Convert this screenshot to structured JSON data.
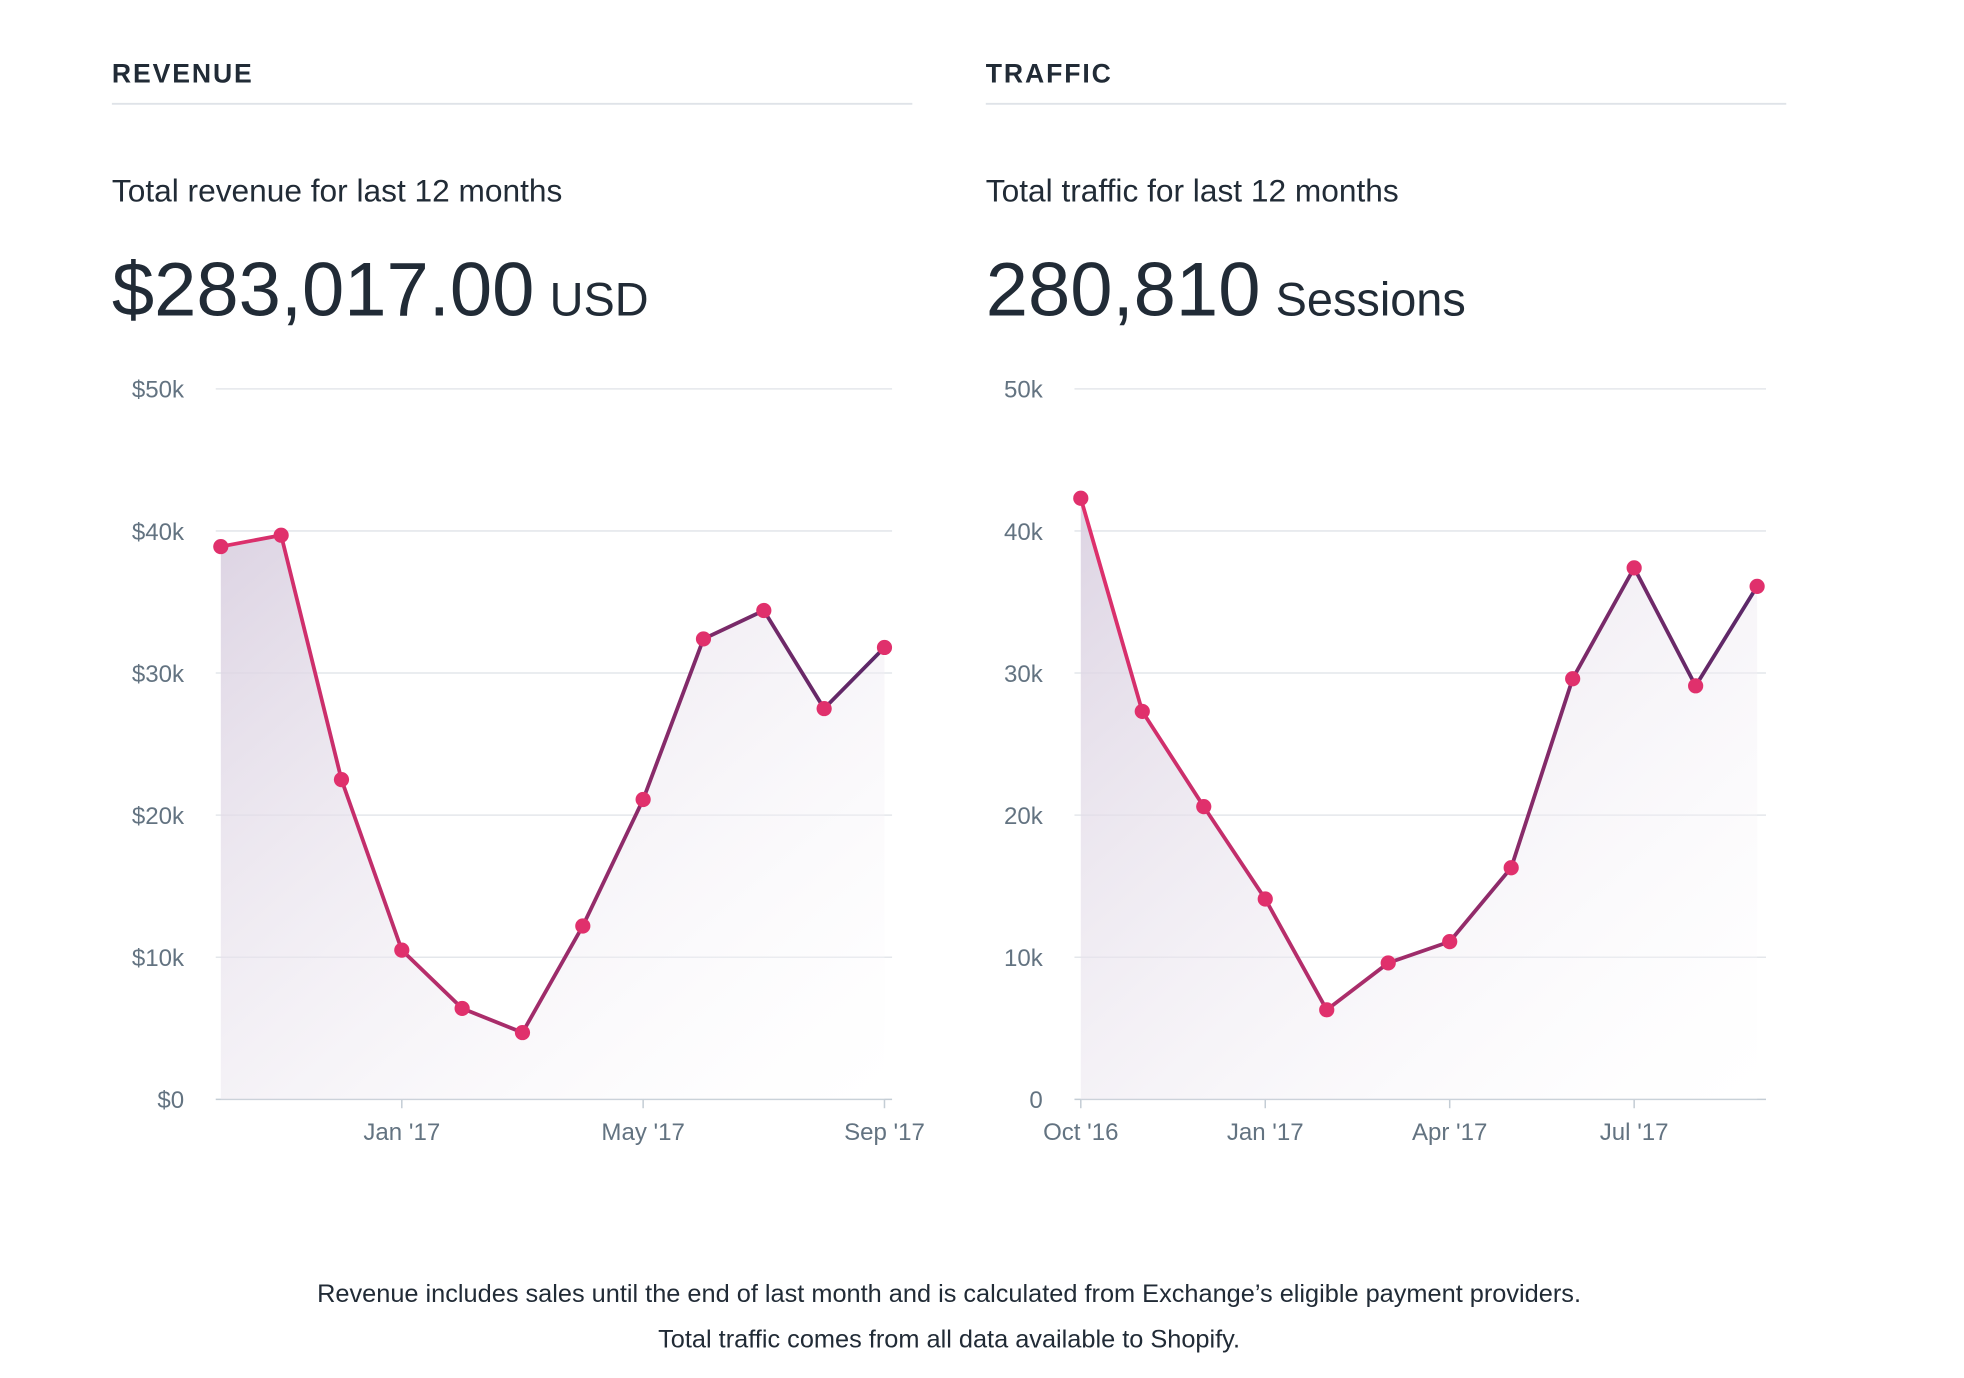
{
  "chart_data": [
    {
      "type": "line",
      "heading": "REVENUE",
      "subtitle": "Total revenue for last 12 months",
      "total": "$283,017.00",
      "total_unit": "USD",
      "categories": [
        null,
        null,
        null,
        "Jan '17",
        null,
        null,
        null,
        "May '17",
        null,
        null,
        null,
        "Sep '17"
      ],
      "series": [
        {
          "values": [
            38900,
            39700,
            22500,
            10500,
            6400,
            4700,
            12200,
            21100,
            32400,
            34400,
            27500,
            31800
          ],
          "color": "#e0306c",
          "line_colors": [
            "#e0306c",
            "#5a2868"
          ]
        }
      ],
      "ylim": [
        0,
        50000
      ],
      "yticks": [
        {
          "value": 0,
          "label": "$0"
        },
        {
          "value": 10000,
          "label": "$10k"
        },
        {
          "value": 20000,
          "label": "$20k"
        },
        {
          "value": 30000,
          "label": "$30k"
        },
        {
          "value": 40000,
          "label": "$40k"
        },
        {
          "value": 50000,
          "label": "$50k"
        }
      ],
      "grid": true
    },
    {
      "type": "line",
      "heading": "TRAFFIC",
      "subtitle": "Total traffic for last 12 months",
      "total": "280,810",
      "total_unit": "Sessions",
      "categories": [
        "Oct '16",
        null,
        null,
        "Jan '17",
        null,
        null,
        "Apr '17",
        null,
        null,
        "Jul '17",
        null,
        null
      ],
      "series": [
        {
          "values": [
            42300,
            27300,
            20600,
            14100,
            6300,
            9600,
            11100,
            16300,
            29600,
            37400,
            29100,
            36100
          ],
          "color": "#e0306c",
          "line_colors": [
            "#e0306c",
            "#5a2868"
          ]
        }
      ],
      "ylim": [
        0,
        50000
      ],
      "yticks": [
        0,
        {
          "value": 10000,
          "label": "10k"
        },
        {
          "value": 20000,
          "label": "20k"
        },
        {
          "value": 30000,
          "label": "30k"
        },
        {
          "value": 40000,
          "label": "40k"
        },
        {
          "value": 50000,
          "label": "50k"
        }
      ],
      "grid": true
    }
  ],
  "footnotes": [
    "Revenue includes sales until the end of last month and is calculated from Exchange’s eligible payment providers.",
    "Total traffic comes from all data available to Shopify."
  ]
}
